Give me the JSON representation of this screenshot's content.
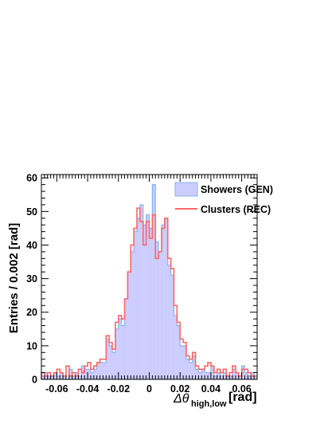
{
  "chart_data": {
    "type": "bar",
    "title": "",
    "xlabel": "Δθ",
    "xlabel_sub": "high,low",
    "xlabel_unit": "[rad]",
    "ylabel": "Entries / 0.002 [rad]",
    "xlim": [
      -0.07,
      0.07
    ],
    "ylim": [
      0,
      61
    ],
    "bin_width": 0.002,
    "x_ticks": [
      {
        "v": -0.06,
        "label": "-0.06"
      },
      {
        "v": -0.04,
        "label": "-0.04"
      },
      {
        "v": -0.02,
        "label": "-0.02"
      },
      {
        "v": 0,
        "label": "0"
      },
      {
        "v": 0.02,
        "label": "0.02"
      },
      {
        "v": 0.04,
        "label": "0.04"
      },
      {
        "v": 0.06,
        "label": "0.06"
      }
    ],
    "y_ticks": [
      {
        "v": 0,
        "label": "0"
      },
      {
        "v": 10,
        "label": "10"
      },
      {
        "v": 20,
        "label": "20"
      },
      {
        "v": 30,
        "label": "30"
      },
      {
        "v": 40,
        "label": "40"
      },
      {
        "v": 50,
        "label": "50"
      },
      {
        "v": 60,
        "label": "60"
      }
    ],
    "grid": false,
    "legend_position": "top-right",
    "bin_edges_start": -0.07,
    "series": [
      {
        "name": "Showers (GEN)",
        "style": "filled-histogram",
        "fill": "#ccccff",
        "stroke": "#8ab4e8",
        "values": [
          1,
          2,
          1,
          1,
          2,
          1,
          2,
          1,
          0,
          3,
          1,
          2,
          1,
          4,
          3,
          3,
          2,
          3,
          5,
          5,
          5,
          12,
          10,
          8,
          15,
          18,
          16,
          24,
          32,
          38,
          44,
          48,
          52,
          46,
          49,
          45,
          58,
          41,
          38,
          46,
          48,
          34,
          31,
          19,
          16,
          10,
          10,
          6,
          5,
          7,
          3,
          2,
          3,
          2,
          2,
          4,
          1,
          2,
          1,
          2,
          1,
          1,
          3,
          2,
          1,
          4,
          2,
          1,
          2,
          1
        ]
      },
      {
        "name": "Clusters (REC)",
        "style": "line-histogram",
        "stroke": "#ff6666",
        "values": [
          2,
          1,
          2,
          1,
          2,
          3,
          2,
          1,
          4,
          1,
          2,
          1,
          3,
          2,
          4,
          5,
          3,
          4,
          5,
          6,
          6,
          13,
          11,
          9,
          17,
          19,
          18,
          24,
          32,
          40,
          45,
          51,
          47,
          40,
          47,
          42,
          49,
          36,
          38,
          45,
          48,
          36,
          33,
          22,
          17,
          12,
          11,
          7,
          6,
          8,
          4,
          3,
          3,
          4,
          5,
          4,
          2,
          3,
          2,
          3,
          1,
          2,
          4,
          2,
          1,
          3,
          3,
          2,
          1,
          1
        ]
      }
    ]
  }
}
